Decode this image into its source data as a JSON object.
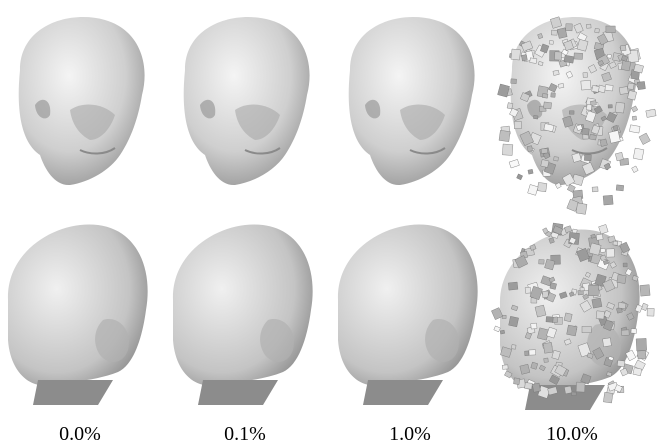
{
  "figure": {
    "columns": [
      {
        "label": "0.0%"
      },
      {
        "label": "0.1%"
      },
      {
        "label": "1.0%"
      },
      {
        "label": "10.0%"
      }
    ]
  }
}
